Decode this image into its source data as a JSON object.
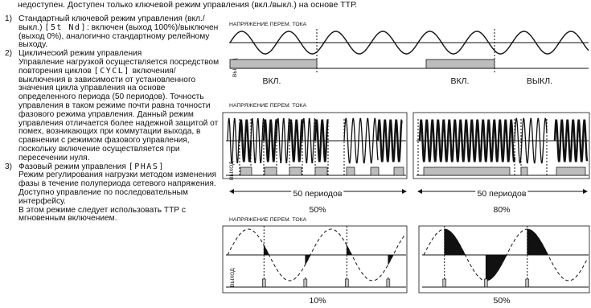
{
  "header": {
    "text": "недоступен. Доступен только ключевой режим управления (вкл./выкл.) на основе ТТР."
  },
  "modes": [
    {
      "num": "1)",
      "before": "Стандартный ключевой режим управления (вкл./выкл.)",
      "code": "[5t Nd]",
      "after": ": включен (выход 100%)/выключен (выход 0%), аналогично стандартному релейному выходу."
    },
    {
      "num": "2)",
      "title": "Циклический режим управления",
      "before": "Управление нагрузкой осуществляется посредством повторения циклов",
      "code": "[CYCL]",
      "after": "включения/выключения в зависимости от установленного значения цикла управления на основе определенного периода (50 периодов). Точность управления в таком режиме почти равна точности фазового режима управления. Данный режим управления отличается более надежной защитой от помех, возникающих при коммутации выхода, в сравнении с режимом фазового управления, поскольку включение осуществляется при пересечении нуля."
    },
    {
      "num": "3)",
      "title": "Фазовый режим управления",
      "code": "[PHAS]",
      "after": "Режим регулирования нагрузки методом изменения фазы в течение полупериода сетевого напряжения. Доступно управление по последовательным интерфейсу.",
      "note": "В этом режиме следует использовать ТТР с мгновенным включением."
    }
  ],
  "figures": {
    "ac_label": "НАПРЯЖЕНИЕ ПЕРЕМ. ТОКА",
    "output_label": "ВЫХОД",
    "on": "ВКЛ.",
    "off": "ВЫКЛ.",
    "periods": "50 периодов",
    "cycle_pcts": [
      "50%",
      "80%"
    ],
    "phase_pcts": [
      "10%",
      "50%"
    ]
  },
  "colors": {
    "ink": "#111111",
    "gray": "#bdbdbd"
  }
}
